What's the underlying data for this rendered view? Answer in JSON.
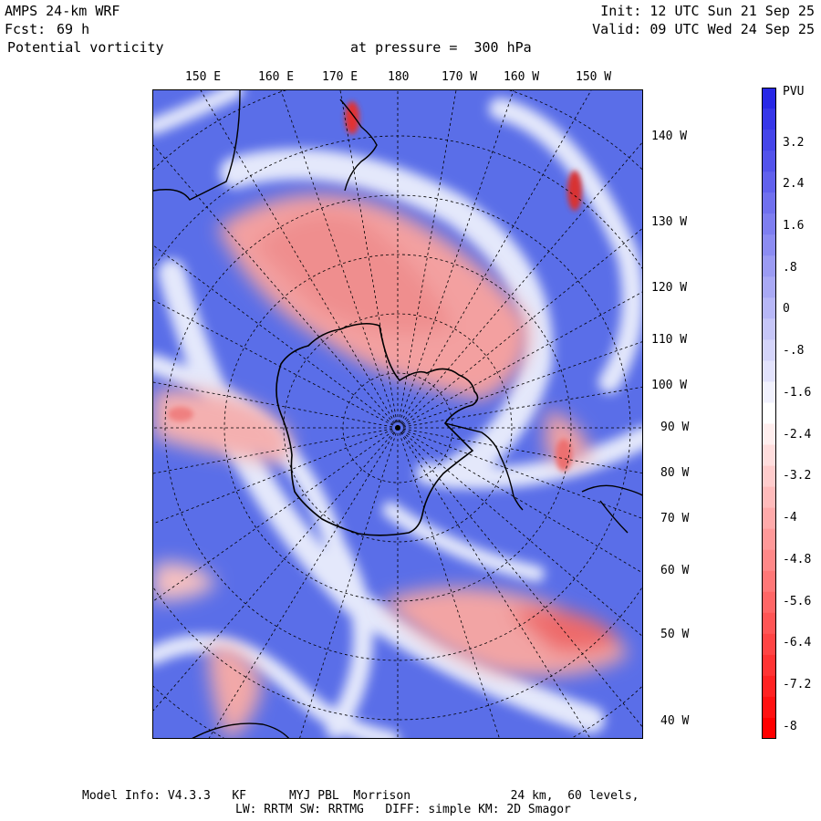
{
  "header": {
    "model": "AMPS 24-km WRF",
    "forecast_label": "Fcst:",
    "forecast_hours": "69 h",
    "field": "Potential vorticity",
    "level": "at pressure =  300 hPa",
    "init": "Init: 12 UTC Sun 21 Sep 25",
    "valid": "Valid: 09 UTC Wed 24 Sep 25"
  },
  "map": {
    "top_lon_labels": [
      "150 E",
      "160 E",
      "170 E",
      "180",
      "170 W",
      "160 W",
      "150 W"
    ],
    "right_lon_labels": [
      "140 W",
      "130 W",
      "120 W",
      "110 W",
      "100 W",
      "90 W",
      "80 W",
      "70 W",
      "60 W",
      "50 W",
      "40 W"
    ],
    "colors": {
      "positive": "#2f3fe0",
      "negative": "#ff0000",
      "neutral": "#ffffff",
      "background_field": "#5a6ee8",
      "coast": "#000000"
    }
  },
  "colorbar": {
    "unit": "PVU",
    "tick_labels": [
      "3.2",
      "2.4",
      "1.6",
      ".8",
      "0",
      "-.8",
      "-1.6",
      "-2.4",
      "-3.2",
      "-4",
      "-4.8",
      "-5.6",
      "-6.4",
      "-7.2",
      "-8"
    ],
    "range": [
      -8,
      4
    ]
  },
  "footer": {
    "line1": "Model Info: V4.3.3   KF      MYJ PBL  Morrison              24 km,  60 levels,",
    "line2": "LW: RRTM SW: RRTMG   DIFF: simple KM: 2D Smagor"
  }
}
